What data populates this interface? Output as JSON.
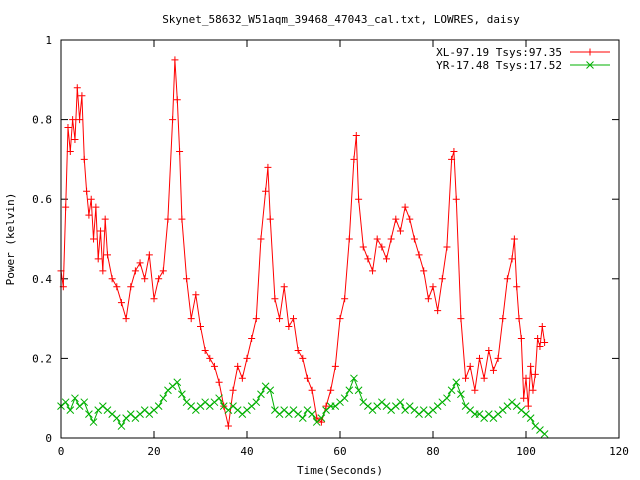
{
  "chart_data": {
    "type": "line",
    "title": "Skynet_58632_W51aqm_39468_47043_cal.txt, LOWRES, daisy",
    "xlabel": "Time(Seconds)",
    "ylabel": "Power (kelvin)",
    "xlim": [
      0,
      120
    ],
    "ylim": [
      0,
      1
    ],
    "xticks": [
      0,
      20,
      40,
      60,
      80,
      100,
      120
    ],
    "yticks": [
      0,
      0.2,
      0.4,
      0.6,
      0.8,
      1
    ],
    "xtick_labels": [
      "0",
      "20",
      "40",
      "60",
      "80",
      "100",
      "120"
    ],
    "ytick_labels": [
      "0",
      "0.2",
      "0.4",
      "0.6",
      "0.8",
      "1"
    ],
    "grid": false,
    "legend_position": "top-right",
    "series": [
      {
        "name": "XL-97.19 Tsys:97.35",
        "color": "#ff0000",
        "marker": "plus",
        "x": [
          0.0,
          0.5,
          1.0,
          1.5,
          2.0,
          2.5,
          3.0,
          3.5,
          4.0,
          4.5,
          5.0,
          5.5,
          6.0,
          6.5,
          7.0,
          7.5,
          8.0,
          8.5,
          9.0,
          9.5,
          10.0,
          11.0,
          12.0,
          13.0,
          14.0,
          15.0,
          16.0,
          17.0,
          18.0,
          19.0,
          20.0,
          21.0,
          22.0,
          23.0,
          24.0,
          24.5,
          25.0,
          25.5,
          26.0,
          27.0,
          28.0,
          29.0,
          30.0,
          31.0,
          32.0,
          33.0,
          34.0,
          35.0,
          36.0,
          37.0,
          38.0,
          39.0,
          40.0,
          41.0,
          42.0,
          43.0,
          44.0,
          44.5,
          45.0,
          46.0,
          47.0,
          48.0,
          49.0,
          50.0,
          51.0,
          52.0,
          53.0,
          54.0,
          55.0,
          56.0,
          57.0,
          58.0,
          59.0,
          60.0,
          61.0,
          62.0,
          63.0,
          63.5,
          64.0,
          65.0,
          66.0,
          67.0,
          68.0,
          69.0,
          70.0,
          71.0,
          72.0,
          73.0,
          74.0,
          75.0,
          76.0,
          77.0,
          78.0,
          79.0,
          80.0,
          81.0,
          82.0,
          83.0,
          84.0,
          84.5,
          85.0,
          86.0,
          87.0,
          88.0,
          89.0,
          90.0,
          91.0,
          92.0,
          93.0,
          94.0,
          95.0,
          96.0,
          97.0,
          97.5,
          98.0,
          98.5,
          99.0,
          99.5,
          100.0,
          100.5,
          101.0,
          101.5,
          102.0,
          102.5,
          103.0,
          103.5,
          104.0
        ],
        "y": [
          0.42,
          0.38,
          0.58,
          0.78,
          0.72,
          0.8,
          0.75,
          0.88,
          0.8,
          0.86,
          0.7,
          0.62,
          0.56,
          0.6,
          0.5,
          0.58,
          0.45,
          0.52,
          0.42,
          0.55,
          0.46,
          0.4,
          0.38,
          0.34,
          0.3,
          0.38,
          0.42,
          0.44,
          0.4,
          0.46,
          0.35,
          0.4,
          0.42,
          0.55,
          0.8,
          0.95,
          0.85,
          0.72,
          0.55,
          0.4,
          0.3,
          0.36,
          0.28,
          0.22,
          0.2,
          0.18,
          0.14,
          0.08,
          0.03,
          0.12,
          0.18,
          0.15,
          0.2,
          0.25,
          0.3,
          0.5,
          0.62,
          0.68,
          0.55,
          0.35,
          0.3,
          0.38,
          0.28,
          0.3,
          0.22,
          0.2,
          0.15,
          0.12,
          0.05,
          0.04,
          0.08,
          0.12,
          0.18,
          0.3,
          0.35,
          0.5,
          0.7,
          0.76,
          0.6,
          0.48,
          0.45,
          0.42,
          0.5,
          0.48,
          0.45,
          0.5,
          0.55,
          0.52,
          0.58,
          0.55,
          0.5,
          0.46,
          0.42,
          0.35,
          0.38,
          0.32,
          0.4,
          0.48,
          0.7,
          0.72,
          0.6,
          0.3,
          0.15,
          0.18,
          0.12,
          0.2,
          0.15,
          0.22,
          0.17,
          0.2,
          0.3,
          0.4,
          0.45,
          0.5,
          0.38,
          0.3,
          0.25,
          0.1,
          0.15,
          0.08,
          0.18,
          0.12,
          0.16,
          0.25,
          0.23,
          0.28,
          0.24
        ]
      },
      {
        "name": "YR-17.48 Tsys:17.52",
        "color": "#00b000",
        "marker": "cross",
        "x": [
          0.0,
          1.0,
          2.0,
          3.0,
          4.0,
          5.0,
          6.0,
          7.0,
          8.0,
          9.0,
          10.0,
          11.0,
          12.0,
          13.0,
          14.0,
          15.0,
          16.0,
          17.0,
          18.0,
          19.0,
          20.0,
          21.0,
          22.0,
          23.0,
          24.0,
          25.0,
          26.0,
          27.0,
          28.0,
          29.0,
          30.0,
          31.0,
          32.0,
          33.0,
          34.0,
          35.0,
          36.0,
          37.0,
          38.0,
          39.0,
          40.0,
          41.0,
          42.0,
          43.0,
          44.0,
          45.0,
          46.0,
          47.0,
          48.0,
          49.0,
          50.0,
          51.0,
          52.0,
          53.0,
          54.0,
          55.0,
          56.0,
          57.0,
          58.0,
          59.0,
          60.0,
          61.0,
          62.0,
          63.0,
          64.0,
          65.0,
          66.0,
          67.0,
          68.0,
          69.0,
          70.0,
          71.0,
          72.0,
          73.0,
          74.0,
          75.0,
          76.0,
          77.0,
          78.0,
          79.0,
          80.0,
          81.0,
          82.0,
          83.0,
          84.0,
          85.0,
          86.0,
          87.0,
          88.0,
          89.0,
          90.0,
          91.0,
          92.0,
          93.0,
          94.0,
          95.0,
          96.0,
          97.0,
          98.0,
          99.0,
          100.0,
          101.0,
          102.0,
          103.0,
          104.0
        ],
        "y": [
          0.08,
          0.09,
          0.07,
          0.1,
          0.08,
          0.09,
          0.06,
          0.04,
          0.07,
          0.08,
          0.07,
          0.06,
          0.05,
          0.03,
          0.05,
          0.06,
          0.05,
          0.06,
          0.07,
          0.06,
          0.07,
          0.08,
          0.1,
          0.12,
          0.13,
          0.14,
          0.11,
          0.09,
          0.08,
          0.07,
          0.08,
          0.09,
          0.08,
          0.09,
          0.1,
          0.08,
          0.07,
          0.08,
          0.07,
          0.06,
          0.07,
          0.08,
          0.09,
          0.11,
          0.13,
          0.12,
          0.07,
          0.06,
          0.07,
          0.06,
          0.07,
          0.06,
          0.05,
          0.07,
          0.06,
          0.04,
          0.05,
          0.07,
          0.08,
          0.08,
          0.09,
          0.1,
          0.12,
          0.15,
          0.12,
          0.09,
          0.08,
          0.07,
          0.08,
          0.09,
          0.08,
          0.07,
          0.08,
          0.09,
          0.07,
          0.08,
          0.07,
          0.06,
          0.07,
          0.06,
          0.07,
          0.08,
          0.09,
          0.1,
          0.12,
          0.14,
          0.11,
          0.08,
          0.07,
          0.06,
          0.06,
          0.05,
          0.06,
          0.05,
          0.06,
          0.07,
          0.08,
          0.09,
          0.08,
          0.07,
          0.06,
          0.05,
          0.03,
          0.02,
          0.01
        ]
      }
    ]
  }
}
